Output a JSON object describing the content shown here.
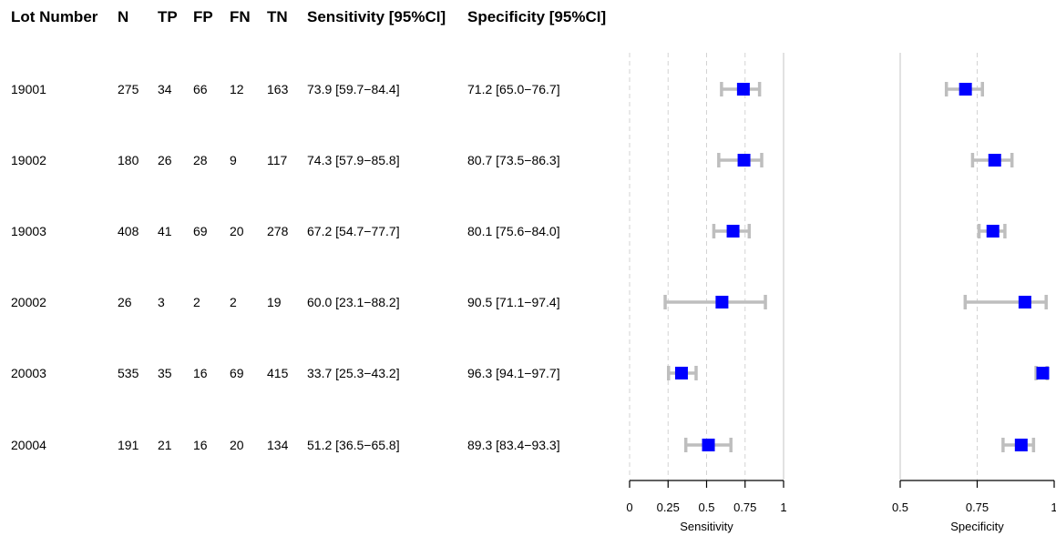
{
  "chart_data": {
    "type": "forest",
    "table": {
      "columns": [
        "Lot Number",
        "N",
        "TP",
        "FP",
        "FN",
        "TN",
        "Sensitivity [95%CI]",
        "Specificity [95%CI]"
      ],
      "rows": [
        [
          "19001",
          "275",
          "34",
          "66",
          "12",
          "163",
          "73.9 [59.7−84.4]",
          "71.2 [65.0−76.7]"
        ],
        [
          "19002",
          "180",
          "26",
          "28",
          "9",
          "117",
          "74.3 [57.9−85.8]",
          "80.7 [73.5−86.3]"
        ],
        [
          "19003",
          "408",
          "41",
          "69",
          "20",
          "278",
          "67.2 [54.7−77.7]",
          "80.1 [75.6−84.0]"
        ],
        [
          "20002",
          "26",
          "3",
          "2",
          "2",
          "19",
          "60.0 [23.1−88.2]",
          "90.5 [71.1−97.4]"
        ],
        [
          "20003",
          "535",
          "35",
          "16",
          "69",
          "415",
          "33.7 [25.3−43.2]",
          "96.3 [94.1−97.7]"
        ],
        [
          "20004",
          "191",
          "21",
          "16",
          "20",
          "134",
          "51.2 [36.5−65.8]",
          "89.3 [83.4−93.3]"
        ]
      ]
    },
    "panels": [
      {
        "xlabel": "Sensitivity",
        "xlim": [
          0,
          1
        ],
        "ticks": [
          0,
          0.25,
          0.5,
          0.75,
          1
        ],
        "tick_labels": [
          "0",
          "0.25",
          "0.5",
          "0.75",
          "1"
        ],
        "grid_dashed": [
          0,
          0.25,
          0.5,
          0.75
        ],
        "reference_line": 1,
        "estimates": [
          0.739,
          0.743,
          0.672,
          0.6,
          0.337,
          0.512
        ],
        "lower": [
          0.597,
          0.579,
          0.547,
          0.231,
          0.253,
          0.365
        ],
        "upper": [
          0.844,
          0.858,
          0.777,
          0.882,
          0.432,
          0.658
        ]
      },
      {
        "xlabel": "Specificity",
        "xlim": [
          0.5,
          1
        ],
        "ticks": [
          0.5,
          0.75,
          1
        ],
        "tick_labels": [
          "0.5",
          "0.75",
          "1"
        ],
        "grid_dashed": [
          0.75
        ],
        "reference_line": 0.5,
        "estimates": [
          0.712,
          0.807,
          0.801,
          0.905,
          0.963,
          0.893
        ],
        "lower": [
          0.65,
          0.735,
          0.756,
          0.711,
          0.941,
          0.834
        ],
        "upper": [
          0.767,
          0.863,
          0.84,
          0.974,
          0.977,
          0.933
        ]
      }
    ],
    "colors": {
      "point": "#0000ff",
      "ci": "#bebebe",
      "grid": "#d3d3d3",
      "axis": "#000000"
    }
  }
}
